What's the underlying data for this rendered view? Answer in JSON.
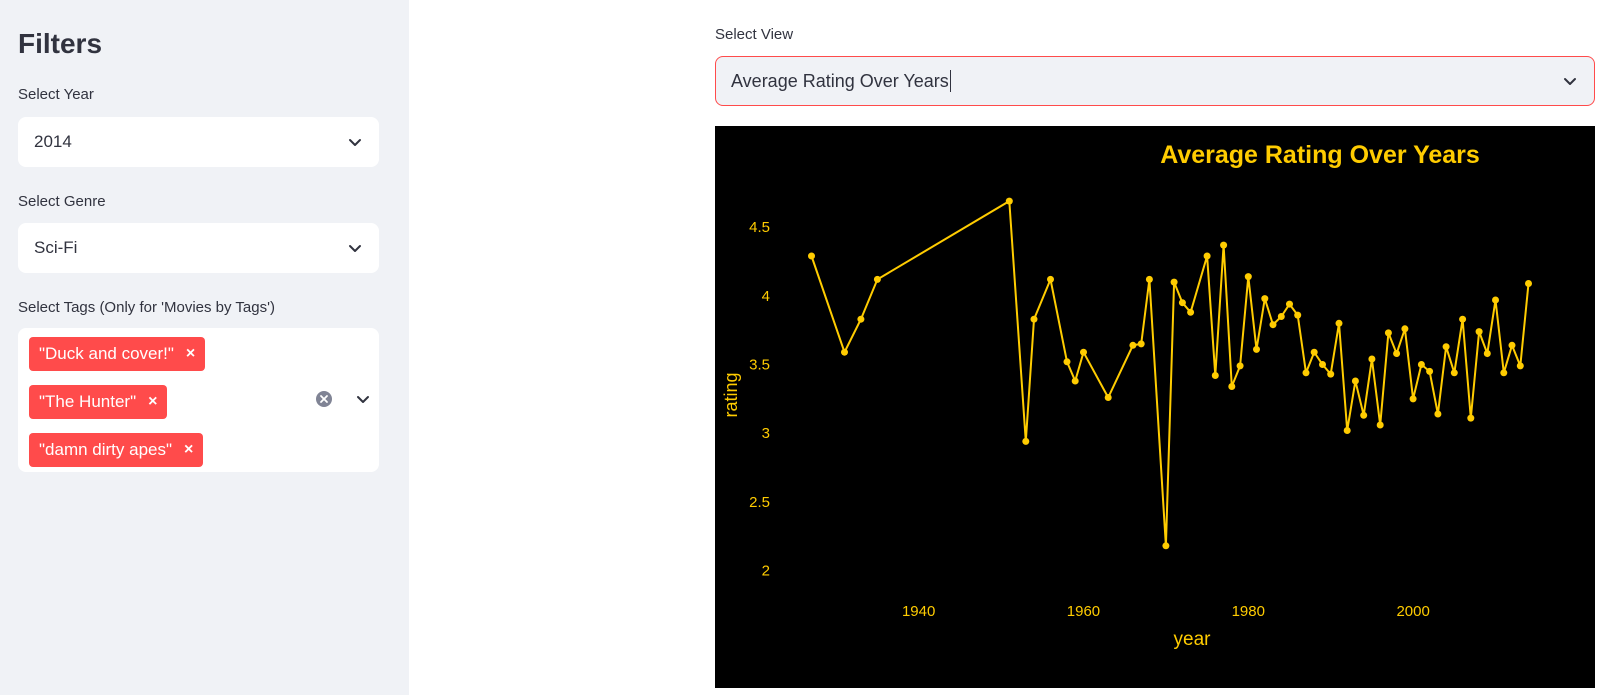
{
  "sidebar": {
    "title": "Filters",
    "year": {
      "label": "Select Year",
      "value": "2014"
    },
    "genre": {
      "label": "Select Genre",
      "value": "Sci-Fi"
    },
    "tags": {
      "label": "Select Tags (Only for 'Movies by Tags')",
      "selected": [
        "\"Duck and cover!\"",
        "\"The Hunter\"",
        "\"damn dirty apes\""
      ],
      "remove_glyph": "×"
    }
  },
  "main": {
    "view": {
      "label": "Select View",
      "value": "Average Rating Over Years"
    }
  },
  "colors": {
    "accent": "#ff4b4b",
    "chart_line": "#ffcc00",
    "chart_background": "#000000",
    "sidebar_background": "#f0f2f6"
  },
  "chart_data": {
    "type": "line",
    "title": "Average Rating Over Years",
    "xlabel": "year",
    "ylabel": "rating",
    "xlim": [
      1925,
      2016
    ],
    "ylim": [
      1.8,
      4.8
    ],
    "xticks": [
      1940,
      1960,
      1980,
      2000
    ],
    "yticks": [
      2,
      2.5,
      3,
      3.5,
      4,
      4.5
    ],
    "ytick_labels": [
      "2",
      "2.5",
      "3",
      "3.5",
      "4",
      "4.5"
    ],
    "markers": true,
    "grid": false,
    "x": [
      1927,
      1931,
      1933,
      1935,
      1951,
      1953,
      1954,
      1956,
      1958,
      1959,
      1960,
      1963,
      1966,
      1967,
      1968,
      1970,
      1971,
      1972,
      1973,
      1975,
      1976,
      1977,
      1978,
      1979,
      1980,
      1981,
      1982,
      1983,
      1984,
      1985,
      1986,
      1987,
      1988,
      1989,
      1990,
      1991,
      1992,
      1993,
      1994,
      1995,
      1996,
      1997,
      1998,
      1999,
      2000,
      2001,
      2002,
      2003,
      2004,
      2005,
      2006,
      2007,
      2008,
      2009,
      2010,
      2011,
      2012,
      2013,
      2014
    ],
    "y": [
      4.29,
      3.59,
      3.83,
      4.12,
      4.69,
      2.94,
      3.83,
      4.12,
      3.52,
      3.38,
      3.59,
      3.26,
      3.64,
      3.65,
      4.12,
      2.18,
      4.1,
      3.95,
      3.88,
      4.29,
      3.42,
      4.37,
      3.34,
      3.49,
      4.14,
      3.61,
      3.98,
      3.79,
      3.85,
      3.94,
      3.86,
      3.44,
      3.59,
      3.5,
      3.43,
      3.8,
      3.02,
      3.38,
      3.13,
      3.54,
      3.06,
      3.73,
      3.58,
      3.76,
      3.25,
      3.5,
      3.45,
      3.14,
      3.63,
      3.44,
      3.83,
      3.11,
      3.74,
      3.58,
      3.97,
      3.44,
      3.64,
      3.49,
      4.09
    ]
  }
}
